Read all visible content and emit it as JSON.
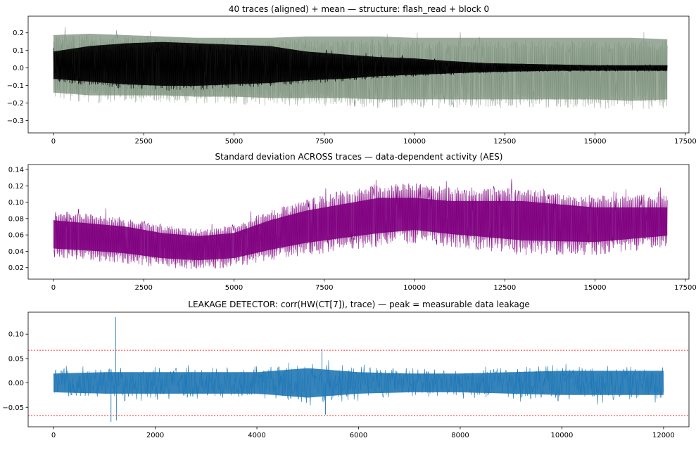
{
  "chart_data": [
    {
      "type": "line",
      "title": "40 traces (aligned) + mean — structure: flash_read + block 0",
      "xlabel": "",
      "ylabel": "",
      "xlim": [
        -700,
        17600
      ],
      "ylim": [
        -0.37,
        0.295
      ],
      "xticks": [
        0,
        2500,
        5000,
        7500,
        10000,
        12500,
        15000,
        17500
      ],
      "yticks": [
        -0.3,
        -0.2,
        -0.1,
        0.0,
        0.1,
        0.2
      ],
      "xticklabels": [
        "0",
        "2500",
        "5000",
        "7500",
        "10000",
        "12500",
        "15000",
        "17500"
      ],
      "yticklabels": [
        "−0.3",
        "−0.2",
        "−0.1",
        "0.0",
        "0.1",
        "0.2"
      ],
      "n_samples": 17000,
      "grid": false,
      "series": [
        {
          "name": "",
          "color": "#7a8f7a",
          "role": "traces_envelope",
          "x": [
            0,
            1000,
            2000,
            3000,
            4000,
            5000,
            6000,
            7000,
            8000,
            9000,
            10000,
            11000,
            12000,
            13000,
            14000,
            15000,
            16000,
            17000
          ],
          "upper": [
            0.24,
            0.25,
            0.24,
            0.23,
            0.22,
            0.22,
            0.22,
            0.23,
            0.23,
            0.23,
            0.22,
            0.22,
            0.22,
            0.22,
            0.22,
            0.22,
            0.22,
            0.21
          ],
          "lower": [
            -0.18,
            -0.2,
            -0.2,
            -0.2,
            -0.21,
            -0.21,
            -0.22,
            -0.22,
            -0.22,
            -0.23,
            -0.23,
            -0.23,
            -0.23,
            -0.23,
            -0.23,
            -0.23,
            -0.24,
            -0.23
          ]
        },
        {
          "name": "",
          "color": "#000000",
          "role": "mean",
          "x": [
            0,
            1000,
            2000,
            3000,
            4000,
            5000,
            6000,
            7000,
            8000,
            9000,
            10000,
            11000,
            12000,
            13000,
            14000,
            15000,
            16000,
            17000
          ],
          "upper": [
            0.12,
            0.16,
            0.18,
            0.19,
            0.18,
            0.17,
            0.16,
            0.12,
            0.1,
            0.08,
            0.07,
            0.05,
            0.035,
            0.03,
            0.025,
            0.02,
            0.02,
            0.02
          ],
          "lower": [
            -0.08,
            -0.1,
            -0.12,
            -0.13,
            -0.13,
            -0.12,
            -0.11,
            -0.09,
            -0.08,
            -0.06,
            -0.05,
            -0.04,
            -0.03,
            -0.025,
            -0.02,
            -0.02,
            -0.02,
            -0.02
          ]
        }
      ]
    },
    {
      "type": "line",
      "title": "Standard deviation ACROSS traces — data-dependent activity (AES)",
      "xlabel": "",
      "ylabel": "",
      "xlim": [
        -700,
        17600
      ],
      "ylim": [
        0.006,
        0.146
      ],
      "xticks": [
        0,
        2500,
        5000,
        7500,
        10000,
        12500,
        15000,
        17500
      ],
      "yticks": [
        0.02,
        0.04,
        0.06,
        0.08,
        0.1,
        0.12,
        0.14
      ],
      "xticklabels": [
        "0",
        "2500",
        "5000",
        "7500",
        "10000",
        "12500",
        "15000",
        "17500"
      ],
      "yticklabels": [
        "0.02",
        "0.04",
        "0.06",
        "0.08",
        "0.10",
        "0.12",
        "0.14"
      ],
      "n_samples": 17000,
      "grid": false,
      "series": [
        {
          "name": "",
          "color": "#800080",
          "role": "std",
          "x": [
            0,
            1000,
            2000,
            3000,
            4000,
            5000,
            6000,
            7000,
            8000,
            9000,
            10000,
            11000,
            12000,
            13000,
            14000,
            15000,
            16000,
            17000
          ],
          "upper": [
            0.1,
            0.095,
            0.09,
            0.08,
            0.075,
            0.08,
            0.1,
            0.115,
            0.125,
            0.135,
            0.135,
            0.13,
            0.13,
            0.13,
            0.125,
            0.12,
            0.12,
            0.12
          ],
          "lower": [
            0.03,
            0.028,
            0.025,
            0.02,
            0.018,
            0.02,
            0.028,
            0.035,
            0.04,
            0.045,
            0.05,
            0.045,
            0.04,
            0.035,
            0.035,
            0.035,
            0.04,
            0.045
          ]
        }
      ]
    },
    {
      "type": "line",
      "title": "LEAKAGE DETECTOR: corr(HW(CT[7]), trace) — peak = measurable data leakage",
      "xlabel": "",
      "ylabel": "",
      "xlim": [
        -500,
        12500
      ],
      "ylim": [
        -0.09,
        0.145
      ],
      "xticks": [
        0,
        2000,
        4000,
        6000,
        8000,
        10000,
        12000
      ],
      "yticks": [
        -0.05,
        0.0,
        0.05,
        0.1
      ],
      "xticklabels": [
        "0",
        "2000",
        "4000",
        "6000",
        "8000",
        "10000",
        "12000"
      ],
      "yticklabels": [
        "−0.05",
        "0.00",
        "0.05",
        "0.10"
      ],
      "n_samples": 12000,
      "grid": false,
      "threshold_lines": [
        {
          "y": 0.067,
          "color": "#ff0000"
        },
        {
          "y": -0.067,
          "color": "#ff0000"
        }
      ],
      "series": [
        {
          "name": "",
          "color": "#1f77b4",
          "role": "corr",
          "x": [
            0,
            1000,
            2000,
            3000,
            4000,
            5000,
            6000,
            7000,
            8000,
            9000,
            10000,
            11000,
            12000
          ],
          "upper": [
            0.035,
            0.04,
            0.04,
            0.04,
            0.04,
            0.055,
            0.04,
            0.035,
            0.035,
            0.04,
            0.045,
            0.045,
            0.045
          ],
          "lower": [
            -0.035,
            -0.04,
            -0.04,
            -0.04,
            -0.04,
            -0.055,
            -0.04,
            -0.035,
            -0.035,
            -0.04,
            -0.045,
            -0.045,
            -0.045
          ]
        }
      ],
      "spikes": [
        {
          "x": 1130,
          "y": -0.08
        },
        {
          "x": 1220,
          "y": 0.135
        },
        {
          "x": 1240,
          "y": -0.077
        },
        {
          "x": 5280,
          "y": 0.07
        },
        {
          "x": 5350,
          "y": -0.065
        }
      ]
    }
  ]
}
